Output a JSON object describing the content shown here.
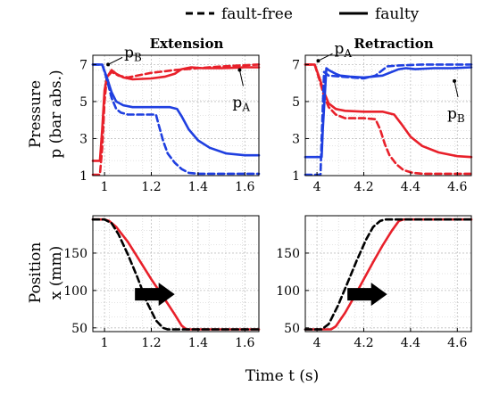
{
  "legend": {
    "dashed_label": "fault-free",
    "solid_label": "faulty"
  },
  "ylabels": {
    "pressure": [
      "Pressure",
      "p (bar abs.)"
    ],
    "position": [
      "Position",
      "x (mm)"
    ]
  },
  "xlabel": "Time t (s)",
  "colors": {
    "pA": "#e8202a",
    "pB": "#1f3fe0",
    "x_faulty": "#e8202a",
    "x_faultfree": "#000000",
    "grid": "#c8c8c8"
  },
  "chart_data": [
    {
      "type": "line",
      "title": "Extension",
      "xlim": [
        0.95,
        1.66
      ],
      "ylim": [
        1,
        7.5
      ],
      "xticks": [
        1,
        1.2,
        1.4,
        1.6
      ],
      "xtick_labels": [
        "1",
        "1.2",
        "1.4",
        "1.6"
      ],
      "yticks": [
        1,
        3,
        5,
        7
      ],
      "ytick_labels": [
        "1",
        "3",
        "5",
        "7"
      ],
      "grid": true,
      "annotations": [
        {
          "text": "p",
          "sub": "B",
          "x": 1.0,
          "y": 7.0
        },
        {
          "text": "p",
          "sub": "A",
          "x": 1.57,
          "y": 6.9
        }
      ],
      "series": [
        {
          "name": "p_A faulty",
          "style": "solid",
          "color_key": "pA",
          "x": [
            0.95,
            0.98,
            0.99,
            1.0,
            1.01,
            1.03,
            1.05,
            1.08,
            1.12,
            1.2,
            1.26,
            1.3,
            1.33,
            1.37,
            1.42,
            1.5,
            1.6,
            1.66
          ],
          "y": [
            1.8,
            1.8,
            3.5,
            5.6,
            6.3,
            6.7,
            6.5,
            6.3,
            6.2,
            6.25,
            6.35,
            6.5,
            6.75,
            6.85,
            6.8,
            6.8,
            6.85,
            6.85
          ]
        },
        {
          "name": "p_A fault-free",
          "style": "dashed",
          "color_key": "pA",
          "x": [
            0.95,
            0.98,
            0.99,
            1.0,
            1.01,
            1.03,
            1.06,
            1.1,
            1.2,
            1.3,
            1.4,
            1.5,
            1.66
          ],
          "y": [
            1.05,
            1.05,
            2.5,
            5.0,
            6.3,
            6.6,
            6.4,
            6.3,
            6.55,
            6.7,
            6.8,
            6.9,
            7.0
          ]
        },
        {
          "name": "p_B faulty",
          "style": "solid",
          "color_key": "pB",
          "x": [
            0.95,
            0.99,
            1.01,
            1.03,
            1.05,
            1.08,
            1.12,
            1.2,
            1.28,
            1.31,
            1.33,
            1.36,
            1.4,
            1.45,
            1.52,
            1.6,
            1.66
          ],
          "y": [
            7.0,
            7.0,
            6.3,
            5.5,
            5.0,
            4.8,
            4.7,
            4.7,
            4.7,
            4.6,
            4.2,
            3.5,
            2.9,
            2.5,
            2.2,
            2.1,
            2.1
          ]
        },
        {
          "name": "p_B fault-free",
          "style": "dashed",
          "color_key": "pB",
          "x": [
            0.95,
            0.99,
            1.01,
            1.03,
            1.05,
            1.07,
            1.1,
            1.15,
            1.22,
            1.23,
            1.25,
            1.27,
            1.3,
            1.33,
            1.36,
            1.4,
            1.5,
            1.66
          ],
          "y": [
            7.0,
            7.0,
            6.2,
            5.2,
            4.6,
            4.4,
            4.3,
            4.3,
            4.3,
            3.8,
            2.9,
            2.2,
            1.7,
            1.35,
            1.15,
            1.1,
            1.1,
            1.1
          ]
        }
      ]
    },
    {
      "type": "line",
      "title": "Retraction",
      "xlim": [
        3.95,
        4.66
      ],
      "ylim": [
        1,
        7.5
      ],
      "xticks": [
        4,
        4.2,
        4.4,
        4.6
      ],
      "xtick_labels": [
        "4",
        "4.2",
        "4.4",
        "4.6"
      ],
      "yticks": [
        1,
        3,
        5,
        7
      ],
      "ytick_labels": [
        "1",
        "3",
        "5",
        "7"
      ],
      "grid": true,
      "annotations": [
        {
          "text": "p",
          "sub": "A",
          "x": 3.99,
          "y": 7.2
        },
        {
          "text": "p",
          "sub": "B",
          "x": 4.58,
          "y": 6.3
        }
      ],
      "series": [
        {
          "name": "p_A faulty",
          "style": "solid",
          "color_key": "pA",
          "x": [
            3.95,
            3.99,
            4.01,
            4.03,
            4.05,
            4.08,
            4.12,
            4.2,
            4.28,
            4.33,
            4.36,
            4.4,
            4.45,
            4.52,
            4.6,
            4.66
          ],
          "y": [
            7.0,
            7.0,
            6.3,
            5.5,
            4.9,
            4.6,
            4.5,
            4.45,
            4.45,
            4.3,
            3.8,
            3.1,
            2.6,
            2.25,
            2.05,
            2.0
          ]
        },
        {
          "name": "p_A fault-free",
          "style": "dashed",
          "color_key": "pA",
          "x": [
            3.95,
            3.99,
            4.01,
            4.03,
            4.05,
            4.08,
            4.12,
            4.2,
            4.25,
            4.27,
            4.29,
            4.31,
            4.34,
            4.37,
            4.41,
            4.45,
            4.5,
            4.66
          ],
          "y": [
            7.0,
            7.0,
            6.2,
            5.3,
            4.7,
            4.3,
            4.1,
            4.1,
            4.05,
            3.5,
            2.7,
            2.1,
            1.6,
            1.3,
            1.15,
            1.1,
            1.1,
            1.1
          ]
        },
        {
          "name": "p_B faulty",
          "style": "solid",
          "color_key": "pB",
          "x": [
            3.95,
            4.02,
            4.025,
            4.04,
            4.05,
            4.08,
            4.1,
            4.14,
            4.2,
            4.28,
            4.32,
            4.35,
            4.38,
            4.42,
            4.5,
            4.58,
            4.66
          ],
          "y": [
            2.0,
            2.0,
            3.5,
            6.8,
            6.7,
            6.5,
            6.4,
            6.35,
            6.3,
            6.4,
            6.6,
            6.75,
            6.8,
            6.75,
            6.8,
            6.8,
            6.85
          ]
        },
        {
          "name": "p_B fault-free",
          "style": "dashed",
          "color_key": "pB",
          "x": [
            3.95,
            4.015,
            4.02,
            4.03,
            4.05,
            4.1,
            4.15,
            4.2,
            4.25,
            4.28,
            4.3,
            4.35,
            4.45,
            4.55,
            4.66
          ],
          "y": [
            1.05,
            1.05,
            3.0,
            6.6,
            6.4,
            6.35,
            6.3,
            6.25,
            6.4,
            6.7,
            6.9,
            6.95,
            7.0,
            7.0,
            7.0
          ]
        }
      ]
    },
    {
      "type": "line",
      "xlim": [
        0.95,
        1.66
      ],
      "ylim": [
        45,
        200
      ],
      "xticks": [
        1,
        1.2,
        1.4,
        1.6
      ],
      "xtick_labels": [
        "1",
        "1.2",
        "1.4",
        "1.6"
      ],
      "yticks": [
        50,
        100,
        150
      ],
      "ytick_labels": [
        "50",
        "100",
        "150"
      ],
      "grid": true,
      "arrow": {
        "x_start": 1.13,
        "x_end": 1.3,
        "y": 95
      },
      "series": [
        {
          "name": "x faulty",
          "style": "solid",
          "color_key": "x_faulty",
          "x": [
            0.95,
            1.0,
            1.02,
            1.05,
            1.1,
            1.15,
            1.2,
            1.25,
            1.3,
            1.33,
            1.35,
            1.4,
            1.66
          ],
          "y": [
            195,
            195,
            193,
            185,
            165,
            140,
            115,
            92,
            68,
            53,
            48,
            48,
            48
          ]
        },
        {
          "name": "x fault-free",
          "style": "dashed",
          "color_key": "x_faultfree",
          "x": [
            0.95,
            1.0,
            1.03,
            1.06,
            1.1,
            1.14,
            1.18,
            1.22,
            1.25,
            1.27,
            1.3,
            1.66
          ],
          "y": [
            195,
            195,
            190,
            175,
            148,
            118,
            85,
            60,
            50,
            48,
            48,
            48
          ]
        }
      ]
    },
    {
      "type": "line",
      "xlim": [
        3.95,
        4.66
      ],
      "ylim": [
        45,
        200
      ],
      "xticks": [
        4,
        4.2,
        4.4,
        4.6
      ],
      "xtick_labels": [
        "4",
        "4.2",
        "4.4",
        "4.6"
      ],
      "yticks": [
        50,
        100,
        150
      ],
      "ytick_labels": [
        "50",
        "100",
        "150"
      ],
      "grid": true,
      "arrow": {
        "x_start": 4.13,
        "x_end": 4.3,
        "y": 95
      },
      "series": [
        {
          "name": "x faulty",
          "style": "solid",
          "color_key": "x_faulty",
          "x": [
            3.95,
            4.06,
            4.08,
            4.12,
            4.16,
            4.2,
            4.24,
            4.28,
            4.32,
            4.35,
            4.37,
            4.4,
            4.66
          ],
          "y": [
            48,
            48,
            52,
            70,
            92,
            115,
            138,
            160,
            180,
            193,
            195,
            195,
            195
          ]
        },
        {
          "name": "x fault-free",
          "style": "dashed",
          "color_key": "x_faultfree",
          "x": [
            3.95,
            4.02,
            4.05,
            4.09,
            4.13,
            4.17,
            4.21,
            4.24,
            4.27,
            4.29,
            4.32,
            4.66
          ],
          "y": [
            48,
            48,
            55,
            80,
            110,
            140,
            168,
            185,
            193,
            195,
            195,
            195
          ]
        }
      ]
    }
  ]
}
